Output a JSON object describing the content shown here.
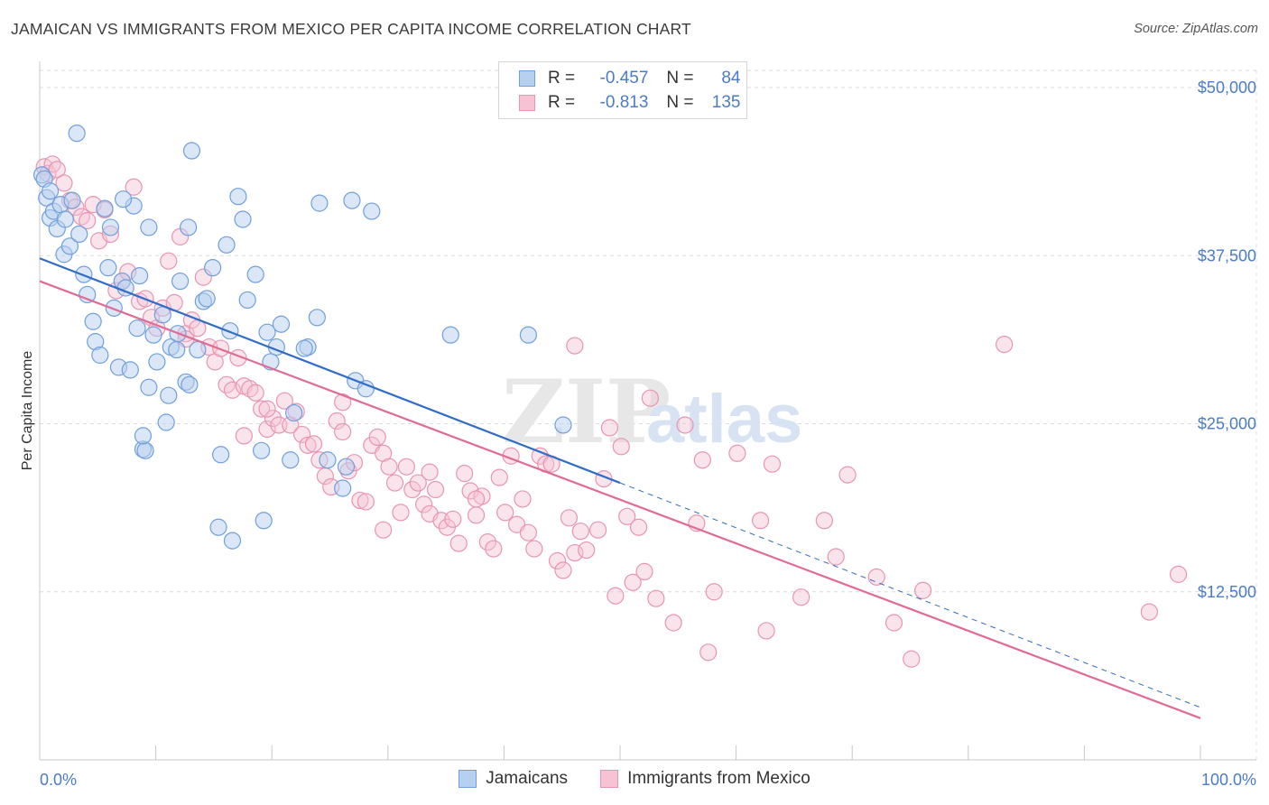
{
  "title": "JAMAICAN VS IMMIGRANTS FROM MEXICO PER CAPITA INCOME CORRELATION CHART",
  "source": "Source: ZipAtlas.com",
  "watermark": {
    "zip": "ZIP",
    "atlas": "atlas"
  },
  "legend": {
    "rows": [
      {
        "r_label": "R =",
        "r_value": "-0.457",
        "n_label": "N =",
        "n_value": "84"
      },
      {
        "r_label": "R =",
        "r_value": "-0.813",
        "n_label": "N =",
        "n_value": "135"
      }
    ]
  },
  "colors": {
    "jamaicans": "#6f9fdc",
    "jamaicans_fill": "#b8d0ef",
    "jamaicans_line": "#2f6dc9",
    "mexico": "#e994b2",
    "mexico_fill": "#f5c3d4",
    "mexico_line": "#e06b95",
    "tick_text": "#4a7cc8",
    "grid": "#dcdcdc"
  },
  "chart_data": {
    "type": "scatter",
    "title": "JAMAICAN VS IMMIGRANTS FROM MEXICO PER CAPITA INCOME CORRELATION CHART",
    "ylabel": "Per Capita Income",
    "xlabel": "",
    "xlim": [
      0,
      100
    ],
    "ylim": [
      0,
      52500
    ],
    "x_ticks": [
      {
        "value": 0,
        "label": "0.0%"
      },
      {
        "value": 100,
        "label": "100.0%"
      }
    ],
    "y_ticks": [
      {
        "value": 12500,
        "label": "$12,500"
      },
      {
        "value": 25000,
        "label": "$25,000"
      },
      {
        "value": 37500,
        "label": "$37,500"
      },
      {
        "value": 50000,
        "label": "$50,000"
      }
    ],
    "grid": true,
    "legend_position": "top-center",
    "series": [
      {
        "name": "Jamaicans",
        "r": -0.457,
        "n": 84,
        "trend": {
          "x0": 0,
          "y0": 37300,
          "x1": 50,
          "y1": 20600,
          "dash_x1": 100,
          "dash_y1": 3900
        },
        "points": [
          [
            0.2,
            43500
          ],
          [
            0.4,
            43200
          ],
          [
            0.6,
            41800
          ],
          [
            0.9,
            40300
          ],
          [
            1.2,
            40800
          ],
          [
            1.8,
            41300
          ],
          [
            2.1,
            37600
          ],
          [
            2.8,
            41600
          ],
          [
            2.6,
            38200
          ],
          [
            3.4,
            39100
          ],
          [
            3.8,
            36100
          ],
          [
            4.1,
            34600
          ],
          [
            4.6,
            32600
          ],
          [
            4.8,
            31100
          ],
          [
            5.2,
            30100
          ],
          [
            5.6,
            41000
          ],
          [
            6.1,
            39600
          ],
          [
            5.9,
            36600
          ],
          [
            6.4,
            33600
          ],
          [
            6.8,
            29200
          ],
          [
            7.1,
            35600
          ],
          [
            7.4,
            35100
          ],
          [
            7.8,
            29000
          ],
          [
            8.1,
            41200
          ],
          [
            8.4,
            32100
          ],
          [
            8.6,
            36000
          ],
          [
            8.9,
            23100
          ],
          [
            9.1,
            23000
          ],
          [
            9.4,
            39600
          ],
          [
            9.8,
            31600
          ],
          [
            10.1,
            29600
          ],
          [
            10.6,
            33100
          ],
          [
            10.9,
            25100
          ],
          [
            11.1,
            27100
          ],
          [
            11.3,
            30700
          ],
          [
            11.8,
            30500
          ],
          [
            12.1,
            35600
          ],
          [
            12.6,
            28100
          ],
          [
            12.9,
            27900
          ],
          [
            13.1,
            45300
          ],
          [
            13.6,
            30500
          ],
          [
            14.1,
            34100
          ],
          [
            14.4,
            34300
          ],
          [
            14.9,
            36600
          ],
          [
            15.6,
            22700
          ],
          [
            15.4,
            17300
          ],
          [
            16.1,
            38300
          ],
          [
            16.6,
            16300
          ],
          [
            17.1,
            41900
          ],
          [
            17.5,
            40200
          ],
          [
            17.9,
            34200
          ],
          [
            18.6,
            36100
          ],
          [
            19.1,
            23000
          ],
          [
            19.3,
            17800
          ],
          [
            19.6,
            31800
          ],
          [
            19.9,
            29600
          ],
          [
            20.4,
            30700
          ],
          [
            21.6,
            22300
          ],
          [
            21.9,
            25800
          ],
          [
            23.1,
            30700
          ],
          [
            23.9,
            32900
          ],
          [
            24.1,
            41400
          ],
          [
            24.8,
            22300
          ],
          [
            26.1,
            20200
          ],
          [
            26.9,
            41600
          ],
          [
            27.2,
            28200
          ],
          [
            28.1,
            27600
          ],
          [
            28.6,
            40800
          ],
          [
            35.4,
            31600
          ],
          [
            42.1,
            31600
          ],
          [
            45.1,
            24900
          ],
          [
            7.2,
            41700
          ],
          [
            3.2,
            46600
          ],
          [
            1.5,
            39500
          ],
          [
            2.2,
            40200
          ],
          [
            12.8,
            39600
          ],
          [
            0.9,
            42300
          ],
          [
            11.9,
            31700
          ],
          [
            8.9,
            24100
          ],
          [
            20.8,
            32400
          ],
          [
            22.8,
            30600
          ],
          [
            26.4,
            21800
          ],
          [
            16.4,
            31900
          ],
          [
            9.4,
            27700
          ]
        ]
      },
      {
        "name": "Immigrants from Mexico",
        "r": -0.813,
        "n": 135,
        "trend": {
          "x0": 0,
          "y0": 35600,
          "x1": 100,
          "y1": 3100
        },
        "points": [
          [
            0.4,
            44100
          ],
          [
            0.7,
            43600
          ],
          [
            1.1,
            44300
          ],
          [
            1.5,
            43900
          ],
          [
            2.1,
            42900
          ],
          [
            2.6,
            41600
          ],
          [
            3.1,
            41100
          ],
          [
            3.6,
            40400
          ],
          [
            4.1,
            40100
          ],
          [
            4.6,
            41300
          ],
          [
            5.1,
            38600
          ],
          [
            5.6,
            40900
          ],
          [
            6.1,
            39100
          ],
          [
            6.6,
            34900
          ],
          [
            7.1,
            35600
          ],
          [
            7.6,
            36300
          ],
          [
            8.1,
            42600
          ],
          [
            8.6,
            34100
          ],
          [
            9.1,
            34300
          ],
          [
            9.6,
            32900
          ],
          [
            10.1,
            32100
          ],
          [
            10.6,
            33600
          ],
          [
            11.1,
            37100
          ],
          [
            11.6,
            34000
          ],
          [
            12.1,
            38900
          ],
          [
            12.6,
            31700
          ],
          [
            13.1,
            32700
          ],
          [
            13.6,
            32100
          ],
          [
            14.1,
            35900
          ],
          [
            14.6,
            30700
          ],
          [
            15.1,
            29600
          ],
          [
            15.6,
            30600
          ],
          [
            16.1,
            27900
          ],
          [
            16.6,
            27500
          ],
          [
            17.1,
            29900
          ],
          [
            17.6,
            27800
          ],
          [
            18.1,
            27600
          ],
          [
            18.6,
            27300
          ],
          [
            19.1,
            26100
          ],
          [
            19.6,
            24600
          ],
          [
            20.1,
            25400
          ],
          [
            20.6,
            24900
          ],
          [
            21.1,
            26700
          ],
          [
            21.6,
            24900
          ],
          [
            22.1,
            25900
          ],
          [
            22.6,
            24200
          ],
          [
            23.1,
            23400
          ],
          [
            23.6,
            23500
          ],
          [
            24.1,
            22300
          ],
          [
            24.6,
            21100
          ],
          [
            25.1,
            20300
          ],
          [
            25.6,
            25200
          ],
          [
            26.1,
            24400
          ],
          [
            26.6,
            21500
          ],
          [
            27.1,
            22100
          ],
          [
            27.6,
            19300
          ],
          [
            28.1,
            19200
          ],
          [
            28.6,
            23400
          ],
          [
            29.1,
            24000
          ],
          [
            29.6,
            22800
          ],
          [
            30.1,
            21800
          ],
          [
            30.6,
            20600
          ],
          [
            31.1,
            18400
          ],
          [
            31.6,
            21800
          ],
          [
            32.1,
            20100
          ],
          [
            32.6,
            20600
          ],
          [
            33.1,
            19000
          ],
          [
            33.6,
            18300
          ],
          [
            34.1,
            20100
          ],
          [
            34.6,
            17800
          ],
          [
            35.1,
            17300
          ],
          [
            35.6,
            17900
          ],
          [
            36.1,
            16100
          ],
          [
            36.6,
            21300
          ],
          [
            37.1,
            20000
          ],
          [
            37.6,
            18200
          ],
          [
            38.1,
            19600
          ],
          [
            38.6,
            16200
          ],
          [
            39.1,
            15700
          ],
          [
            39.6,
            21000
          ],
          [
            40.1,
            18400
          ],
          [
            40.6,
            22600
          ],
          [
            41.1,
            17500
          ],
          [
            41.6,
            19400
          ],
          [
            42.1,
            16900
          ],
          [
            42.6,
            15700
          ],
          [
            43.1,
            22600
          ],
          [
            43.6,
            22000
          ],
          [
            44.1,
            22000
          ],
          [
            44.6,
            14800
          ],
          [
            45.1,
            14100
          ],
          [
            45.6,
            18000
          ],
          [
            46.1,
            15400
          ],
          [
            46.6,
            17000
          ],
          [
            47.1,
            15600
          ],
          [
            48.1,
            17100
          ],
          [
            48.6,
            20900
          ],
          [
            49.1,
            24700
          ],
          [
            49.6,
            12200
          ],
          [
            50.1,
            23300
          ],
          [
            50.6,
            18100
          ],
          [
            51.1,
            13200
          ],
          [
            51.6,
            17300
          ],
          [
            52.1,
            14000
          ],
          [
            52.6,
            26900
          ],
          [
            53.1,
            12000
          ],
          [
            54.6,
            10200
          ],
          [
            55.6,
            24900
          ],
          [
            56.6,
            17600
          ],
          [
            57.1,
            22300
          ],
          [
            57.6,
            8000
          ],
          [
            58.1,
            12500
          ],
          [
            60.1,
            22800
          ],
          [
            62.1,
            17800
          ],
          [
            62.6,
            9600
          ],
          [
            63.1,
            22000
          ],
          [
            65.6,
            12100
          ],
          [
            67.6,
            17800
          ],
          [
            68.6,
            15100
          ],
          [
            69.6,
            21200
          ],
          [
            72.1,
            13600
          ],
          [
            73.6,
            10200
          ],
          [
            75.1,
            7500
          ],
          [
            76.1,
            12600
          ],
          [
            83.1,
            30900
          ],
          [
            95.6,
            11000
          ],
          [
            98.1,
            13800
          ],
          [
            46.1,
            30800
          ],
          [
            19.6,
            26100
          ],
          [
            37.6,
            19400
          ],
          [
            26.1,
            26600
          ],
          [
            33.6,
            21400
          ],
          [
            17.6,
            24100
          ],
          [
            12.6,
            31300
          ],
          [
            29.6,
            17100
          ]
        ]
      }
    ]
  }
}
